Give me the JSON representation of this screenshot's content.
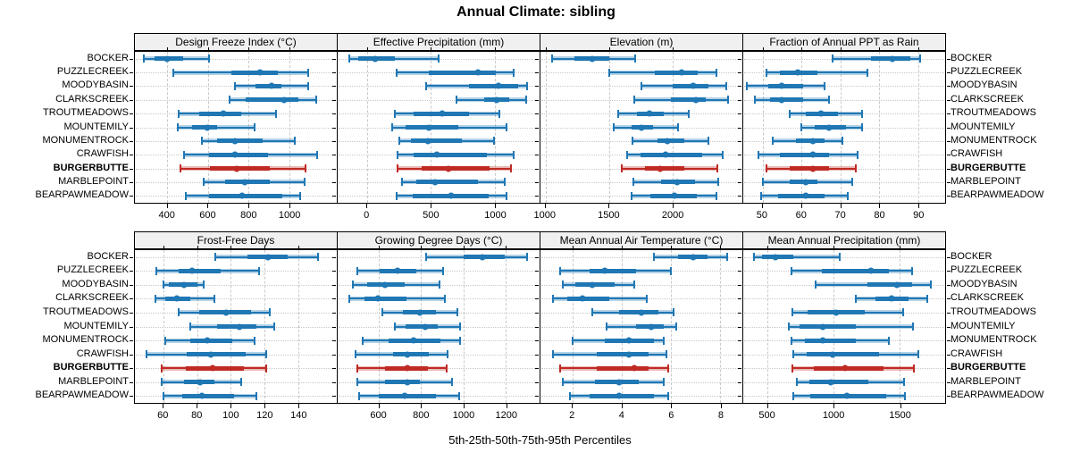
{
  "title": "Annual Climate: sibling",
  "caption": "5th-25th-50th-75th-95th Percentiles",
  "sites": [
    "BOCKER",
    "PUZZLECREEK",
    "MOODYBASIN",
    "CLARKSCREEK",
    "TROUTMEADOWS",
    "MOUNTEMILY",
    "MONUMENTROCK",
    "CRAWFISH",
    "BURGERBUTTE",
    "MARBLEPOINT",
    "BEARPAWMEADOW"
  ],
  "highlight_site": "BURGERBUTTE",
  "percentiles": [
    "5th",
    "25th",
    "50th",
    "75th",
    "95th"
  ],
  "colors": {
    "series": "#1f77b4",
    "series_rgb": "31,119,180",
    "highlight": "#bf2b24",
    "highlight_rgb": "191,43,36",
    "band_alpha": 0.33,
    "grid": "#c9c9c9",
    "header_bg": "#f0f0f0",
    "border": "#000000"
  },
  "chart_data": [
    {
      "type": "percentile-interval",
      "title": "Design Freeze Index (°C)",
      "xlim": [
        240,
        1235
      ],
      "ticks": [
        400,
        600,
        800,
        1000
      ],
      "values": [
        [
          285,
          335,
          400,
          480,
          605
        ],
        [
          430,
          715,
          855,
          945,
          1095
        ],
        [
          735,
          835,
          915,
          960,
          1095
        ],
        [
          705,
          785,
          975,
          1045,
          1135
        ],
        [
          455,
          555,
          675,
          765,
          935
        ],
        [
          450,
          520,
          595,
          645,
          830
        ],
        [
          570,
          645,
          735,
          870,
          1030
        ],
        [
          480,
          605,
          735,
          895,
          1140
        ],
        [
          465,
          610,
          740,
          905,
          1080
        ],
        [
          580,
          685,
          780,
          905,
          1075
        ],
        [
          490,
          605,
          770,
          965,
          1055
        ]
      ]
    },
    {
      "type": "percentile-interval",
      "title": "Effective Precipitation (mm)",
      "xlim": [
        -230,
        1350
      ],
      "ticks": [
        0,
        500,
        1000
      ],
      "values": [
        [
          -140,
          -70,
          65,
          220,
          560
        ],
        [
          230,
          485,
          865,
          1005,
          1150
        ],
        [
          460,
          800,
          1030,
          1180,
          1250
        ],
        [
          700,
          915,
          1015,
          1115,
          1245
        ],
        [
          220,
          365,
          585,
          795,
          1035
        ],
        [
          195,
          300,
          485,
          715,
          1090
        ],
        [
          250,
          340,
          475,
          740,
          995
        ],
        [
          235,
          365,
          545,
          935,
          1150
        ],
        [
          235,
          425,
          640,
          960,
          1125
        ],
        [
          270,
          385,
          535,
          865,
          1075
        ],
        [
          230,
          360,
          655,
          950,
          1090
        ]
      ]
    },
    {
      "type": "percentile-interval",
      "title": "Elevation (m)",
      "xlim": [
        960,
        2550
      ],
      "ticks": [
        1000,
        1500,
        2000
      ],
      "values": [
        [
          1050,
          1230,
          1365,
          1500,
          1705
        ],
        [
          1500,
          1860,
          2070,
          2195,
          2345
        ],
        [
          1755,
          2000,
          2160,
          2285,
          2425
        ],
        [
          1700,
          1985,
          2185,
          2265,
          2440
        ],
        [
          1570,
          1720,
          1815,
          1930,
          2130
        ],
        [
          1535,
          1675,
          1755,
          1850,
          2045
        ],
        [
          1685,
          1880,
          1960,
          2090,
          2285
        ],
        [
          1640,
          1745,
          1945,
          2230,
          2395
        ],
        [
          1600,
          1780,
          1905,
          2090,
          2355
        ],
        [
          1695,
          1910,
          2035,
          2180,
          2360
        ],
        [
          1675,
          1825,
          2015,
          2190,
          2345
        ]
      ]
    },
    {
      "type": "percentile-interval",
      "title": "Fraction of Annual PPT as Rain",
      "xlim": [
        45,
        97
      ],
      "ticks": [
        50,
        60,
        70,
        80,
        90
      ],
      "values": [
        [
          68,
          78,
          83.5,
          88,
          90.5
        ],
        [
          51,
          54.5,
          59,
          64,
          77
        ],
        [
          46,
          51.5,
          55,
          60.5,
          66
        ],
        [
          48,
          52,
          55,
          60.5,
          67
        ],
        [
          57,
          61,
          65,
          69.5,
          75.5
        ],
        [
          60,
          63.5,
          67,
          71.5,
          75.5
        ],
        [
          52.5,
          58.5,
          63,
          66,
          70.5
        ],
        [
          49,
          54.5,
          63,
          67,
          74.5
        ],
        [
          51,
          57,
          63,
          67,
          74
        ],
        [
          50,
          57,
          61,
          64,
          73
        ],
        [
          49.5,
          54,
          61,
          66,
          72
        ]
      ]
    },
    {
      "type": "percentile-interval",
      "title": "Frost-Free Days",
      "xlim": [
        43,
        163
      ],
      "ticks": [
        60,
        80,
        100,
        120,
        140
      ],
      "values": [
        [
          91,
          110,
          122,
          134,
          152
        ],
        [
          56,
          69,
          77,
          94,
          117
        ],
        [
          60,
          63,
          72,
          80,
          84
        ],
        [
          55,
          61,
          68,
          76,
          90
        ],
        [
          69,
          81,
          97,
          112,
          123
        ],
        [
          76,
          92,
          105,
          115,
          126
        ],
        [
          61,
          76,
          86,
          101,
          114
        ],
        [
          50,
          74,
          88,
          109,
          121
        ],
        [
          59,
          73,
          89,
          108,
          121
        ],
        [
          59,
          72,
          82,
          90,
          106
        ],
        [
          60,
          71,
          83,
          102,
          115
        ]
      ]
    },
    {
      "type": "percentile-interval",
      "title": "Growing Degree Days (°C)",
      "xlim": [
        405,
        1360
      ],
      "ticks": [
        600,
        800,
        1000,
        1200
      ],
      "values": [
        [
          825,
          1000,
          1090,
          1195,
          1300
        ],
        [
          500,
          605,
          690,
          775,
          905
        ],
        [
          475,
          545,
          630,
          720,
          885
        ],
        [
          460,
          530,
          595,
          730,
          910
        ],
        [
          615,
          715,
          795,
          870,
          970
        ],
        [
          675,
          725,
          820,
          880,
          985
        ],
        [
          525,
          645,
          765,
          890,
          985
        ],
        [
          490,
          665,
          735,
          835,
          925
        ],
        [
          500,
          630,
          735,
          830,
          920
        ],
        [
          500,
          630,
          735,
          795,
          945
        ],
        [
          505,
          600,
          720,
          870,
          980
        ]
      ]
    },
    {
      "type": "percentile-interval",
      "title": "Mean Annual Air Temperature (°C)",
      "xlim": [
        0.7,
        8.9
      ],
      "ticks": [
        2,
        4,
        6,
        8
      ],
      "values": [
        [
          5.3,
          6.3,
          6.9,
          7.5,
          8.3
        ],
        [
          1.5,
          2.7,
          3.3,
          4.6,
          6.0
        ],
        [
          1.6,
          2.1,
          2.8,
          3.7,
          4.5
        ],
        [
          1.2,
          1.8,
          2.4,
          3.5,
          5.0
        ],
        [
          2.8,
          3.9,
          4.8,
          5.5,
          6.1
        ],
        [
          3.4,
          4.6,
          5.2,
          5.7,
          6.2
        ],
        [
          2.0,
          3.3,
          4.3,
          5.3,
          5.7
        ],
        [
          1.2,
          3.0,
          4.3,
          5.1,
          5.8
        ],
        [
          1.5,
          3.0,
          4.5,
          5.1,
          5.9
        ],
        [
          1.6,
          2.9,
          3.9,
          4.7,
          5.7
        ],
        [
          1.9,
          2.7,
          3.9,
          5.3,
          5.9
        ]
      ]
    },
    {
      "type": "percentile-interval",
      "title": "Mean Annual Precipitation (mm)",
      "xlim": [
        315,
        1845
      ],
      "ticks": [
        500,
        1000,
        1500
      ],
      "values": [
        [
          395,
          455,
          560,
          695,
          1045
        ],
        [
          680,
          910,
          1280,
          1420,
          1595
        ],
        [
          860,
          1255,
          1480,
          1595,
          1740
        ],
        [
          1165,
          1315,
          1440,
          1565,
          1710
        ],
        [
          685,
          800,
          1020,
          1235,
          1525
        ],
        [
          660,
          740,
          915,
          1170,
          1600
        ],
        [
          680,
          785,
          920,
          1170,
          1420
        ],
        [
          695,
          795,
          990,
          1345,
          1645
        ],
        [
          690,
          850,
          1090,
          1380,
          1605
        ],
        [
          720,
          815,
          980,
          1265,
          1535
        ],
        [
          695,
          825,
          1100,
          1395,
          1540
        ]
      ]
    }
  ]
}
